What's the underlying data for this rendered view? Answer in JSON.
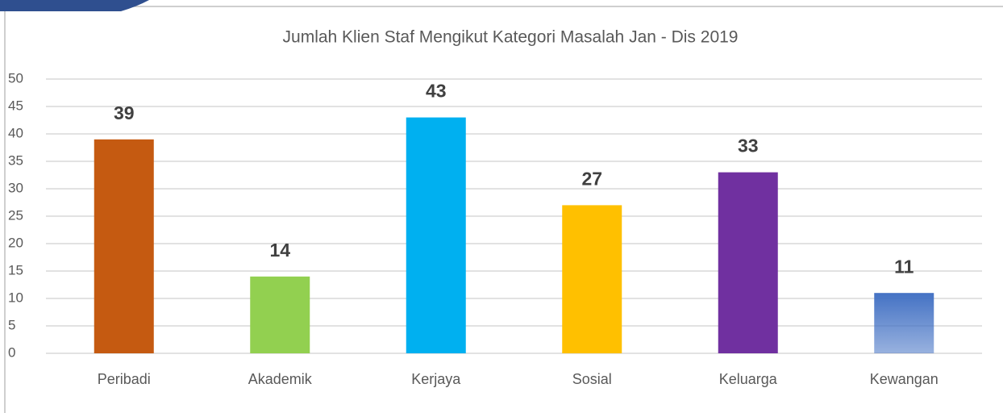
{
  "chart_data": {
    "type": "bar",
    "title": "Jumlah Klien Staf Mengikut Kategori Masalah Jan - Dis 2019",
    "categories": [
      "Peribadi",
      "Akademik",
      "Kerjaya",
      "Sosial",
      "Keluarga",
      "Kewangan"
    ],
    "values": [
      39,
      14,
      43,
      27,
      33,
      11
    ],
    "colors": [
      "#c55a11",
      "#92d050",
      "#00b0f0",
      "#ffc000",
      "#7030a0",
      "#4472c4"
    ],
    "ylim": [
      0,
      50
    ],
    "yticks": [
      0,
      5,
      10,
      15,
      20,
      25,
      30,
      35,
      40,
      45,
      50
    ],
    "grid": true
  }
}
